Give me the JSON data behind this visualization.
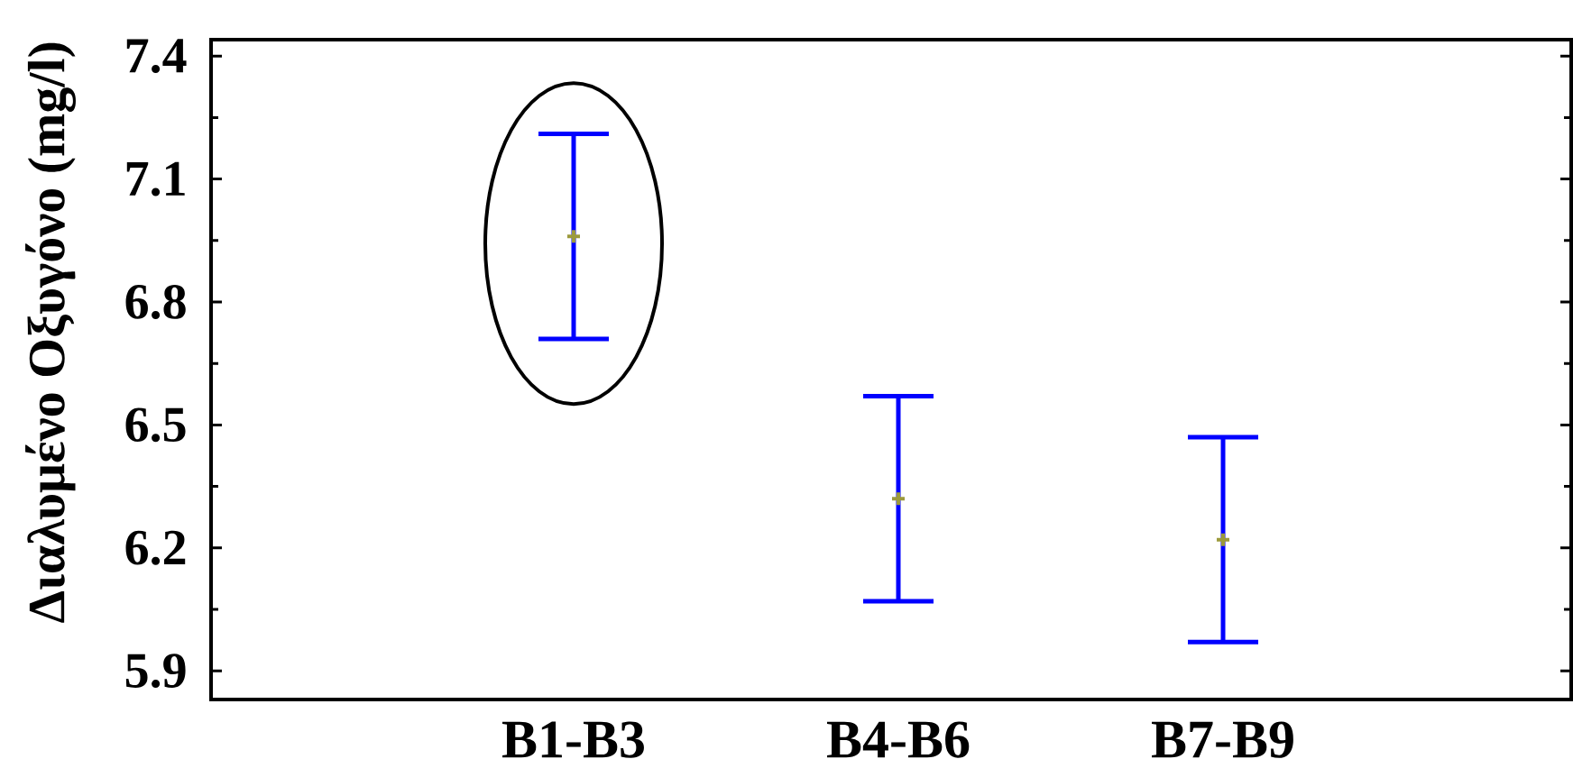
{
  "chart_data": {
    "type": "scatter",
    "ylabel": "Διαλυμένο Οξυγόνο (mg/l)",
    "categories": [
      "B1-B3",
      "B4-B6",
      "B7-B9"
    ],
    "values": [
      6.96,
      6.32,
      6.22
    ],
    "errors": [
      0.25,
      0.25,
      0.25
    ],
    "color": "#9c9a3c",
    "marker": "cross",
    "ylim": [
      5.83,
      7.44
    ],
    "yticks": [
      5.9,
      {
        "value": 6.05,
        "label": null
      },
      6.2,
      {
        "value": 6.35,
        "label": null
      },
      6.5,
      {
        "value": 6.65,
        "label": null
      },
      6.8,
      {
        "value": 6.95,
        "label": null
      },
      7.1,
      {
        "value": 7.25,
        "label": null
      },
      7.4
    ]
  }
}
